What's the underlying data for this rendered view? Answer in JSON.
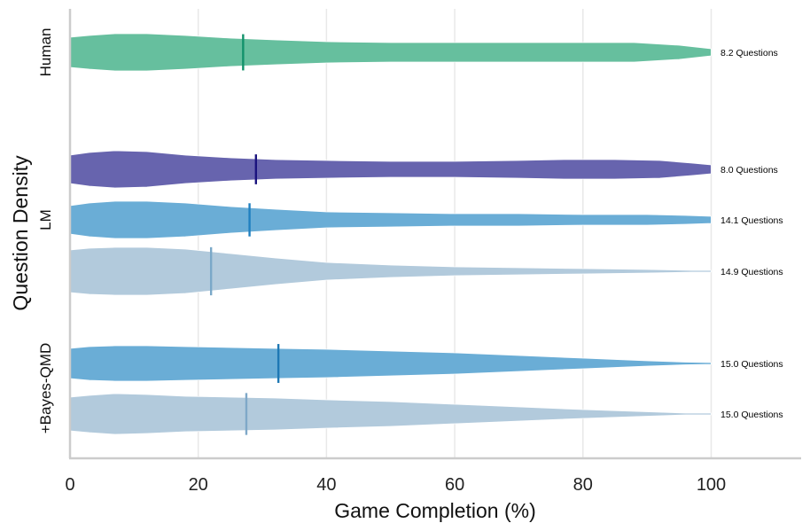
{
  "chart_data": {
    "type": "violin",
    "xlabel": "Game Completion (%)",
    "ylabel": "Question Density",
    "xlim": [
      0,
      113
    ],
    "xticks": [
      0,
      20,
      40,
      60,
      80,
      100
    ],
    "grid": true,
    "groups": [
      "Human",
      "LM",
      "+Bayes-QMD"
    ],
    "series": [
      {
        "group": "Human",
        "count_label": "8.2 Questions",
        "median": 27,
        "color": "#66bf9e",
        "median_color": "#12926a",
        "profile": [
          [
            0,
            17
          ],
          [
            3,
            19
          ],
          [
            7,
            21
          ],
          [
            12,
            21
          ],
          [
            18,
            19
          ],
          [
            25,
            16
          ],
          [
            32,
            14
          ],
          [
            40,
            12
          ],
          [
            50,
            11
          ],
          [
            60,
            11
          ],
          [
            70,
            11
          ],
          [
            80,
            11
          ],
          [
            88,
            11
          ],
          [
            95,
            8
          ],
          [
            100,
            4
          ]
        ]
      },
      {
        "group": "LM",
        "count_label": "8.0 Questions",
        "median": 29,
        "color": "#6764ae",
        "median_color": "#1a137e",
        "profile": [
          [
            0,
            16
          ],
          [
            3,
            19
          ],
          [
            7,
            21
          ],
          [
            12,
            20
          ],
          [
            18,
            16
          ],
          [
            25,
            13
          ],
          [
            32,
            11
          ],
          [
            40,
            10
          ],
          [
            50,
            9
          ],
          [
            60,
            9
          ],
          [
            70,
            10
          ],
          [
            77,
            11
          ],
          [
            85,
            11
          ],
          [
            92,
            10
          ],
          [
            97,
            7
          ],
          [
            100,
            5
          ]
        ]
      },
      {
        "group": "LM",
        "count_label": "14.1 Questions",
        "median": 28,
        "color": "#6aadd6",
        "median_color": "#2080c0",
        "profile": [
          [
            0,
            16
          ],
          [
            3,
            19
          ],
          [
            7,
            21
          ],
          [
            12,
            21
          ],
          [
            18,
            19
          ],
          [
            25,
            15
          ],
          [
            32,
            12
          ],
          [
            40,
            9
          ],
          [
            50,
            8
          ],
          [
            60,
            7
          ],
          [
            70,
            7
          ],
          [
            80,
            6
          ],
          [
            90,
            6
          ],
          [
            96,
            5
          ],
          [
            100,
            4
          ]
        ]
      },
      {
        "group": "LM",
        "count_label": "14.9 Questions",
        "median": 22,
        "color": "#b2cadc",
        "median_color": "#7aa8c8",
        "profile": [
          [
            0,
            24
          ],
          [
            3,
            26
          ],
          [
            7,
            27
          ],
          [
            12,
            27
          ],
          [
            18,
            25
          ],
          [
            25,
            20
          ],
          [
            32,
            15
          ],
          [
            40,
            10
          ],
          [
            50,
            7
          ],
          [
            60,
            5
          ],
          [
            70,
            4
          ],
          [
            80,
            3
          ],
          [
            90,
            2
          ],
          [
            97,
            1
          ],
          [
            100,
            1
          ]
        ]
      },
      {
        "group": "+Bayes-QMD",
        "count_label": "15.0 Questions",
        "median": 32.5,
        "color": "#6aadd6",
        "median_color": "#1e78b4",
        "profile": [
          [
            0,
            17
          ],
          [
            3,
            19
          ],
          [
            7,
            20
          ],
          [
            12,
            20
          ],
          [
            18,
            19
          ],
          [
            25,
            18
          ],
          [
            32,
            17
          ],
          [
            40,
            16
          ],
          [
            50,
            14
          ],
          [
            60,
            12
          ],
          [
            70,
            9
          ],
          [
            80,
            6
          ],
          [
            90,
            3
          ],
          [
            96,
            1.5
          ],
          [
            100,
            1
          ]
        ]
      },
      {
        "group": "+Bayes-QMD",
        "count_label": "15.0 Questions",
        "median": 27.5,
        "color": "#b2cadc",
        "median_color": "#7fa8c8",
        "profile": [
          [
            0,
            19
          ],
          [
            3,
            21
          ],
          [
            7,
            23
          ],
          [
            12,
            22
          ],
          [
            18,
            20
          ],
          [
            25,
            19
          ],
          [
            32,
            18
          ],
          [
            40,
            16
          ],
          [
            50,
            14
          ],
          [
            60,
            11
          ],
          [
            70,
            8
          ],
          [
            80,
            5
          ],
          [
            90,
            2.5
          ],
          [
            96,
            1
          ],
          [
            100,
            1
          ]
        ]
      }
    ]
  }
}
